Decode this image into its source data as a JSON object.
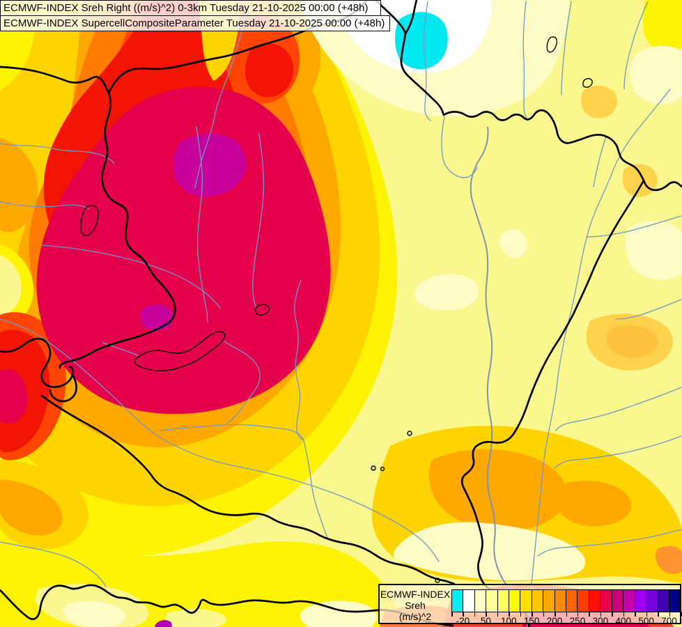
{
  "header": {
    "title_line1": "ECMWF-INDEX Sreh Right ((m/s)^2) 0-3km Tuesday 21-10-2025 00:00 (+48h)",
    "title_line2": "ECMWF-INDEX SupercellCompositeParameter Tuesday 21-10-2025 00:00 (+48h)"
  },
  "legend": {
    "product": "ECMWF-INDEX",
    "parameter": "Sreh",
    "units": "(m/s)^2",
    "scale_colors": [
      "#00F0F0",
      "#FFFFFF",
      "#FFFFC8",
      "#FFFF99",
      "#FFFF66",
      "#FFFF00",
      "#FFDF00",
      "#FFC800",
      "#FFA800",
      "#FF8C00",
      "#FF6400",
      "#FF3C00",
      "#FF0F00",
      "#E8004A",
      "#CC0078",
      "#C400A8",
      "#A000F0",
      "#7800DC",
      "#4000B0",
      "#000082"
    ],
    "tick_labels": [
      "-20",
      "50",
      "100",
      "150",
      "200",
      "250",
      "300",
      "400",
      "500",
      "700"
    ]
  },
  "palette": {
    "base": "#FAF78E",
    "yellow": "#FFF304",
    "gold": "#FFD400",
    "gold_spot": "#FFD24B",
    "amber": "#FFC23E",
    "orange": "#FFA800",
    "dark_orange": "#FF7C00",
    "red_orange": "#FF4503",
    "red": "#F21505",
    "crimson": "#E5004B",
    "magenta": "#C8019B",
    "purple": "#B400B4",
    "cream": "#FDFBC6",
    "white": "#FFFFFF",
    "cyan": "#00E8F0",
    "salmon_red": "#EE4430",
    "orange_sliver": "#FF7A40",
    "orange_spot": "#FF9430",
    "border": "#000000",
    "river": "#6F99C8",
    "major_river": "#8095AD",
    "lake_outline": "#000000"
  }
}
